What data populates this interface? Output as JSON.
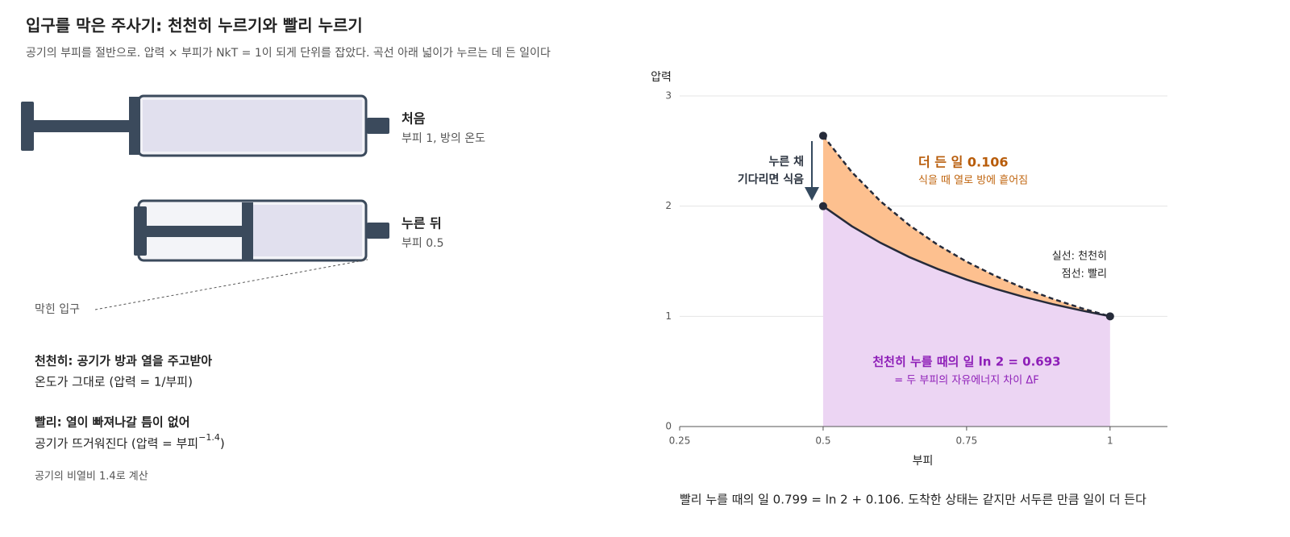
{
  "header": {
    "title": "입구를 막은 주사기: 천천히 누르기와 빨리 누르기",
    "subtitle": "공기의 부피를 절반으로. 압력 × 부피가 NkT = 1이 되게 단위를 잡았다. 곡선 아래 넓이가 누르는 데 든 일이다"
  },
  "syringes": [
    {
      "label": "처음",
      "detail": "부피 1, 방의 온도"
    },
    {
      "label": "누른 뒤",
      "detail": "부피 0.5"
    }
  ],
  "outlet_label": "막힌 입구",
  "notes": [
    {
      "title": "천천히: 공기가 방과 열을 주고받아",
      "text": "온도가 그대로 (압력 = 1/부피)"
    },
    {
      "title": "빨리: 열이 빠져나갈 틈이 없어",
      "text": "공기가 뜨거워진다 (압력 = 부피",
      "superscript": "−1.4",
      "text_end": ")"
    }
  ],
  "note_small": "공기의 비열비 1.4로 계산",
  "chart_data": {
    "type": "line",
    "y_label": "압력",
    "x_label": "부피",
    "x": [
      0.5,
      0.55,
      0.6,
      0.65,
      0.7,
      0.75,
      0.8,
      0.85,
      0.9,
      0.95,
      1.0
    ],
    "series": [
      {
        "name": "실선: 천천히",
        "color": "#262b3a",
        "values": [
          2,
          1.818,
          1.667,
          1.538,
          1.429,
          1.333,
          1.25,
          1.176,
          1.111,
          1.053,
          1
        ]
      },
      {
        "name": "점선: 빨리",
        "color": "#262b3a",
        "values": [
          2.639,
          2.309,
          2.044,
          1.828,
          1.648,
          1.496,
          1.367,
          1.255,
          1.159,
          1.074,
          1
        ]
      }
    ],
    "xlim": [
      0.25,
      1.1
    ],
    "ylim": [
      0,
      3
    ],
    "xticks": [
      0.25,
      0.5,
      0.75,
      1
    ],
    "yticks": [
      0,
      1,
      2,
      3
    ],
    "grid": true,
    "area_colors": [
      "#ecd5f3",
      "#fdc08f"
    ],
    "cooling_note": [
      "누른 채",
      "기다리면 식음"
    ],
    "extra_work": {
      "title": "더 든 일 0.106",
      "text": "식을 때 열로 방에 흩어짐"
    },
    "slow_work": {
      "title": "천천히 누를 때의 일 ln 2 = 0.693",
      "text": "= 두 부피의 자유에너지 차이 ΔF"
    }
  },
  "footer": "빨리 누를 때의 일 0.799 = ln 2 + 0.106. 도착한 상태는 같지만 서두른 만큼 일이 더 든다"
}
